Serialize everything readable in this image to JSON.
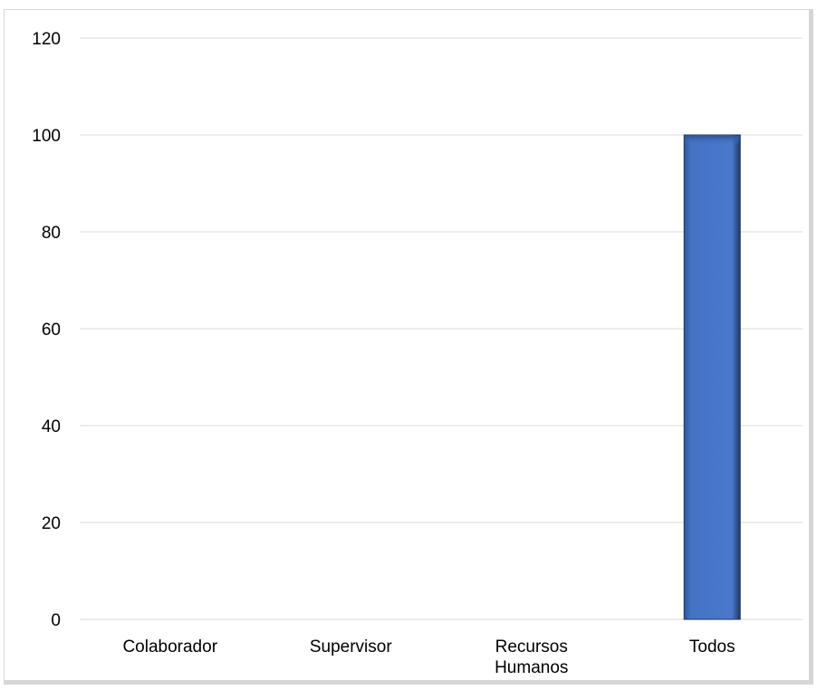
{
  "chart_data": {
    "type": "bar",
    "categories": [
      [
        "Colaborador"
      ],
      [
        "Supervisor"
      ],
      [
        "Recursos",
        "Humanos"
      ],
      [
        "Todos"
      ]
    ],
    "values": [
      0,
      0,
      0,
      100
    ],
    "ylim": [
      0,
      120
    ],
    "yticks": [
      "0",
      "20",
      "40",
      "60",
      "80",
      "100",
      "120"
    ],
    "title": "",
    "xlabel": "",
    "ylabel": "",
    "grid": true,
    "colors": {
      "bar": "#4472c4",
      "bar_dark": "#1f3864",
      "gridline": "#d9d9d9"
    }
  }
}
